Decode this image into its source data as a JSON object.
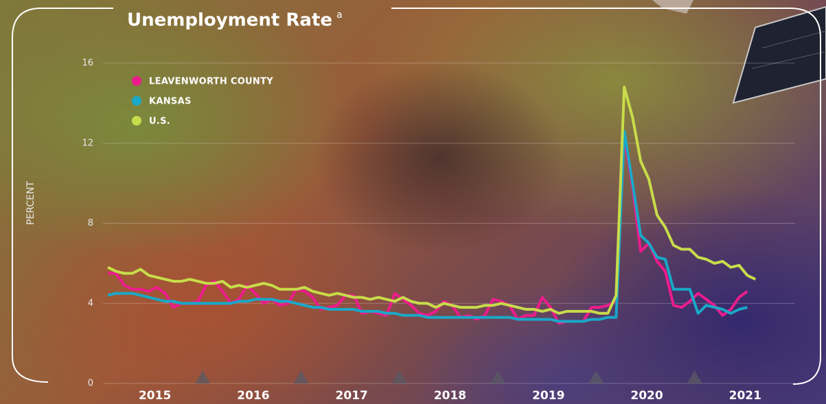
{
  "chart_data": {
    "type": "line",
    "title": "Unemployment Rate",
    "title_note": "a",
    "y_label": "PERCENT",
    "categories": [
      null,
      null,
      null,
      null,
      null,
      null,
      "2015",
      null,
      null,
      null,
      null,
      null,
      null,
      null,
      null,
      null,
      null,
      null,
      "2016",
      null,
      null,
      null,
      null,
      null,
      null,
      null,
      null,
      null,
      null,
      null,
      "2017",
      null,
      null,
      null,
      null,
      null,
      null,
      null,
      null,
      null,
      null,
      null,
      "2018",
      null,
      null,
      null,
      null,
      null,
      null,
      null,
      null,
      null,
      null,
      null,
      "2019",
      null,
      null,
      null,
      null,
      null,
      null,
      null,
      null,
      null,
      null,
      null,
      "2020",
      null,
      null,
      null,
      null,
      null,
      null,
      null,
      null,
      null,
      null,
      null,
      "2021",
      null
    ],
    "series": [
      {
        "name": "LEAVENWORTH COUNTY",
        "color": "#ec1c8c",
        "values": [
          5.5,
          5.5,
          4.9,
          4.7,
          4.7,
          4.6,
          4.8,
          4.5,
          3.8,
          4.0,
          4.0,
          4.1,
          4.9,
          5.1,
          4.6,
          4.0,
          4.2,
          4.9,
          4.5,
          4.0,
          4.2,
          3.9,
          4.0,
          4.7,
          4.6,
          4.3,
          3.7,
          3.8,
          3.9,
          4.4,
          4.4,
          3.5,
          3.6,
          3.5,
          3.4,
          4.5,
          4.2,
          3.9,
          3.5,
          3.4,
          3.6,
          4.1,
          3.9,
          3.3,
          3.4,
          3.2,
          3.4,
          4.2,
          4.1,
          3.9,
          3.2,
          3.4,
          3.4,
          4.3,
          3.8,
          3.0,
          3.1,
          3.1,
          3.1,
          3.8,
          3.8,
          3.9,
          4.1,
          12.3,
          9.8,
          6.6,
          7.0,
          6.1,
          5.6,
          3.9,
          3.8,
          4.1,
          4.5,
          4.2,
          3.9,
          3.4,
          3.7,
          4.3,
          4.6,
          null
        ]
      },
      {
        "name": "KANSAS",
        "color": "#1aa8c8",
        "values": [
          4.4,
          4.5,
          4.5,
          4.5,
          4.4,
          4.3,
          4.2,
          4.1,
          4.1,
          4.0,
          4.0,
          4.0,
          4.0,
          4.0,
          4.0,
          4.0,
          4.1,
          4.1,
          4.2,
          4.2,
          4.2,
          4.1,
          4.1,
          4.0,
          3.9,
          3.8,
          3.8,
          3.7,
          3.7,
          3.7,
          3.7,
          3.6,
          3.6,
          3.6,
          3.5,
          3.5,
          3.4,
          3.4,
          3.4,
          3.3,
          3.3,
          3.3,
          3.3,
          3.3,
          3.3,
          3.3,
          3.3,
          3.3,
          3.3,
          3.3,
          3.2,
          3.2,
          3.2,
          3.2,
          3.2,
          3.1,
          3.1,
          3.1,
          3.1,
          3.2,
          3.2,
          3.3,
          3.3,
          12.6,
          10.0,
          7.4,
          7.0,
          6.3,
          6.2,
          4.7,
          4.7,
          4.7,
          3.5,
          3.9,
          3.8,
          3.7,
          3.5,
          3.7,
          3.8,
          null
        ]
      },
      {
        "name": "U.S.",
        "color": "#c8dc4a",
        "values": [
          5.8,
          5.6,
          5.5,
          5.5,
          5.7,
          5.4,
          5.3,
          5.2,
          5.1,
          5.1,
          5.2,
          5.1,
          5.0,
          5.0,
          5.1,
          4.8,
          4.9,
          4.8,
          4.9,
          5.0,
          4.9,
          4.7,
          4.7,
          4.7,
          4.8,
          4.6,
          4.5,
          4.4,
          4.5,
          4.4,
          4.3,
          4.3,
          4.2,
          4.3,
          4.2,
          4.1,
          4.3,
          4.1,
          4.0,
          4.0,
          3.8,
          4.0,
          3.9,
          3.8,
          3.8,
          3.8,
          3.9,
          3.9,
          4.0,
          3.9,
          3.8,
          3.7,
          3.7,
          3.6,
          3.7,
          3.5,
          3.6,
          3.6,
          3.6,
          3.6,
          3.5,
          3.5,
          4.4,
          14.8,
          13.3,
          11.1,
          10.2,
          8.4,
          7.8,
          6.9,
          6.7,
          6.7,
          6.3,
          6.2,
          6.0,
          6.1,
          5.8,
          5.9,
          5.4,
          5.2
        ]
      }
    ],
    "ylim": [
      0,
      16
    ],
    "yticks": [
      0,
      4,
      8,
      12,
      16
    ],
    "grid": true,
    "legend": "top-left"
  }
}
